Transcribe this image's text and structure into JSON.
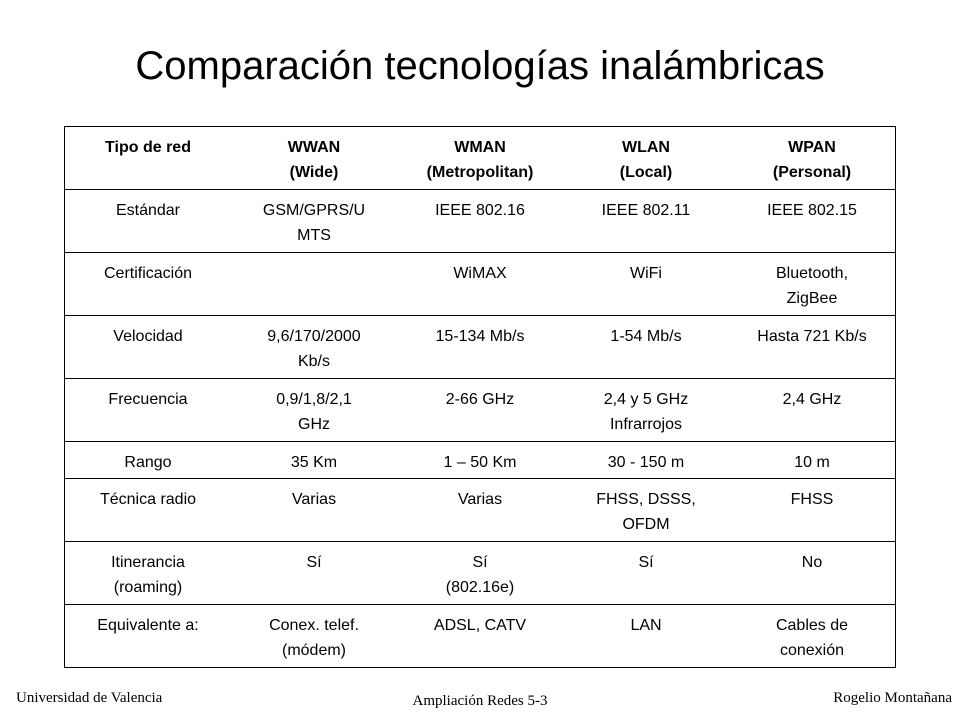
{
  "title": "Comparación tecnologías inalámbricas",
  "table": {
    "header": [
      [
        "Tipo de red"
      ],
      [
        "WWAN",
        "(Wide)"
      ],
      [
        "WMAN",
        "(Metropolitan)"
      ],
      [
        "WLAN",
        "(Local)"
      ],
      [
        "WPAN",
        "(Personal)"
      ]
    ],
    "rows": [
      [
        [
          "Estándar"
        ],
        [
          "GSM/GPRS/U",
          "MTS"
        ],
        [
          "IEEE 802.16"
        ],
        [
          "IEEE 802.11"
        ],
        [
          "IEEE 802.15"
        ]
      ],
      [
        [
          "Certificación"
        ],
        [
          ""
        ],
        [
          "WiMAX"
        ],
        [
          "WiFi"
        ],
        [
          "Bluetooth,",
          "ZigBee"
        ]
      ],
      [
        [
          "Velocidad"
        ],
        [
          "9,6/170/2000",
          "Kb/s"
        ],
        [
          "15-134 Mb/s"
        ],
        [
          "1-54 Mb/s"
        ],
        [
          "Hasta 721 Kb/s"
        ]
      ],
      [
        [
          "Frecuencia"
        ],
        [
          "0,9/1,8/2,1",
          "GHz"
        ],
        [
          "2-66 GHz"
        ],
        [
          "2,4 y 5 GHz",
          "Infrarrojos"
        ],
        [
          "2,4 GHz"
        ]
      ],
      [
        [
          "Rango"
        ],
        [
          "35 Km"
        ],
        [
          "1 – 50 Km"
        ],
        [
          "30 - 150 m"
        ],
        [
          "10 m"
        ]
      ],
      [
        [
          "Técnica radio"
        ],
        [
          "Varias"
        ],
        [
          "Varias"
        ],
        [
          "FHSS, DSSS,",
          "OFDM"
        ],
        [
          "FHSS"
        ]
      ],
      [
        [
          "Itinerancia",
          "(roaming)"
        ],
        [
          "Sí"
        ],
        [
          "Sí",
          "(802.16e)"
        ],
        [
          "Sí"
        ],
        [
          "No"
        ]
      ],
      [
        [
          "Equivalente a:"
        ],
        [
          "Conex. telef.",
          "(módem)"
        ],
        [
          "ADSL, CATV"
        ],
        [
          "LAN"
        ],
        [
          "Cables de",
          "conexión"
        ]
      ]
    ]
  },
  "footer": {
    "left": "Universidad de Valencia",
    "center": "Ampliación Redes 5-3",
    "right": "Rogelio Montañana"
  }
}
